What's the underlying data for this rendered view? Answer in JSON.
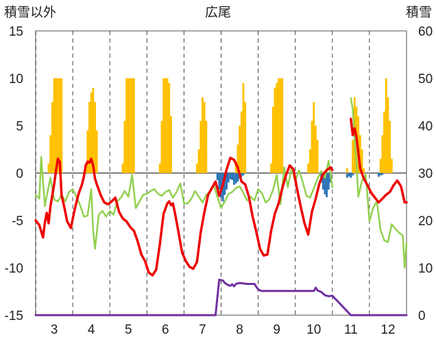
{
  "chart_data": {
    "type": "bar+line",
    "title": "広尾",
    "left_axis_label": "積雪以外",
    "right_axis_label": "積雪",
    "left_ylim": [
      -15,
      15
    ],
    "left_yticks": [
      15,
      10,
      5,
      0,
      -5,
      -10,
      -15
    ],
    "right_ylim": [
      0,
      60
    ],
    "right_yticks": [
      60,
      50,
      40,
      30,
      20,
      10,
      0
    ],
    "xlim": [
      2.5,
      12.5
    ],
    "x_ticks": [
      3,
      4,
      5,
      6,
      7,
      8,
      9,
      10,
      11,
      12
    ],
    "x_tick_labels": [
      "3",
      "4",
      "5",
      "6",
      "7",
      "8",
      "9",
      "10",
      "11",
      "12"
    ],
    "grid": "dashed vertical at month boundaries",
    "colors": {
      "red_series": "#ee0000",
      "green_series": "#92d050",
      "purple_series": "#7030a0",
      "orange_bars": "#ffc000",
      "blue_bars": "#2e75b6",
      "zero_line": "#7f7f7f",
      "frame": "#8c8c8c",
      "grid": "#404040"
    },
    "series": [
      {
        "name": "red line (left axis)",
        "x": [
          2.5,
          2.6,
          2.7,
          2.75,
          2.8,
          2.85,
          2.9,
          3.0,
          3.05,
          3.1,
          3.15,
          3.2,
          3.25,
          3.35,
          3.45,
          3.55,
          3.65,
          3.75,
          3.8,
          3.85,
          3.9,
          3.95,
          4.0,
          4.05,
          4.1,
          4.15,
          4.25,
          4.35,
          4.45,
          4.55,
          4.65,
          4.75,
          4.85,
          4.95,
          5.05,
          5.15,
          5.25,
          5.35,
          5.45,
          5.55,
          5.65,
          5.75,
          5.85,
          5.95,
          6.05,
          6.1,
          6.15,
          6.2,
          6.25,
          6.35,
          6.45,
          6.55,
          6.65,
          6.75,
          6.85,
          6.95,
          7.05,
          7.15,
          7.25,
          7.35,
          7.45,
          7.55,
          7.65,
          7.75,
          7.85,
          7.95,
          8.05,
          8.15,
          8.25,
          8.35,
          8.45,
          8.55,
          8.65,
          8.75,
          8.85,
          8.95,
          9.05,
          9.15,
          9.25,
          9.35,
          9.45,
          9.55,
          9.65,
          9.75,
          9.85,
          9.95,
          10.05,
          10.15,
          10.25,
          10.35,
          10.45,
          10.5,
          11.0,
          11.05,
          11.1,
          11.15,
          11.25,
          11.35,
          11.45,
          11.55,
          11.65,
          11.75,
          11.85,
          11.95,
          12.05,
          12.15,
          12.25,
          12.35,
          12.45,
          12.5
        ],
        "y": [
          -5,
          -5.5,
          -6.8,
          -5.2,
          -4.2,
          -5.3,
          -3.5,
          -1.2,
          0.3,
          1.5,
          1.2,
          -2.4,
          -3.2,
          -5.1,
          -5.8,
          -3.9,
          -2.3,
          -1.2,
          -0.4,
          0.8,
          1.2,
          1.1,
          1.5,
          0.8,
          -0.6,
          -1.2,
          -2.3,
          -3.1,
          -3.3,
          -3.0,
          -2.6,
          -4.1,
          -4.8,
          -5.1,
          -5.7,
          -6.1,
          -7.2,
          -8.6,
          -9.3,
          -10.5,
          -10.8,
          -10.2,
          -7.5,
          -4.3,
          -3.2,
          -3.0,
          -3.4,
          -3.2,
          -4.1,
          -6.2,
          -8.4,
          -9.3,
          -9.9,
          -10.1,
          -9.4,
          -6.3,
          -4.1,
          -2.3,
          -1.6,
          -0.9,
          -2.4,
          -1.2,
          0.4,
          1.6,
          1.4,
          0.6,
          -0.9,
          -1.2,
          -2.5,
          -4.6,
          -6.2,
          -8.0,
          -8.7,
          -8.6,
          -6.1,
          -4.3,
          -3.2,
          -1.6,
          -0.2,
          0.8,
          0.4,
          -1.7,
          -3.6,
          -5.3,
          -6.5,
          -4.1,
          -2.7,
          -1.1,
          -0.1,
          0.3,
          0.6,
          0.3,
          5.7,
          4.0,
          4.7,
          3.8,
          0.5,
          -0.6,
          -1.3,
          -2.1,
          -2.6,
          -3.1,
          -2.7,
          -2.3,
          -2.0,
          -1.3,
          -0.8,
          -1.4,
          -3.1,
          -3.1
        ]
      },
      {
        "name": "green line (left axis)",
        "x": [
          2.5,
          2.6,
          2.65,
          2.7,
          2.75,
          2.8,
          2.9,
          3.0,
          3.1,
          3.2,
          3.3,
          3.4,
          3.5,
          3.6,
          3.7,
          3.8,
          3.9,
          4.0,
          4.05,
          4.1,
          4.2,
          4.3,
          4.4,
          4.5,
          4.6,
          4.7,
          4.8,
          4.9,
          5.0,
          5.1,
          5.2,
          5.3,
          5.4,
          5.5,
          5.6,
          5.7,
          5.8,
          5.9,
          6.0,
          6.1,
          6.2,
          6.3,
          6.4,
          6.5,
          6.6,
          6.7,
          6.8,
          6.9,
          7.0,
          7.1,
          7.2,
          7.3,
          7.4,
          7.5,
          7.6,
          7.7,
          7.8,
          7.9,
          8.0,
          8.1,
          8.2,
          8.3,
          8.4,
          8.5,
          8.6,
          8.7,
          8.8,
          8.9,
          9.0,
          9.1,
          9.2,
          9.3,
          9.4,
          9.5,
          9.6,
          9.7,
          9.8,
          9.9,
          10.0,
          10.1,
          10.2,
          10.3,
          10.4,
          10.5,
          11.0,
          11.05,
          11.1,
          11.15,
          11.2,
          11.3,
          11.4,
          11.5,
          11.6,
          11.7,
          11.8,
          11.9,
          12.0,
          12.1,
          12.2,
          12.3,
          12.4,
          12.45,
          12.5
        ],
        "y": [
          -2.3,
          -2.7,
          1.7,
          -1.0,
          -3.5,
          -2.4,
          -0.5,
          -2.8,
          -3.0,
          -2.3,
          -3.0,
          -2.0,
          -1.7,
          -2.5,
          -3.4,
          -4.6,
          -4.5,
          -1.7,
          -6.1,
          -8.0,
          -4.4,
          -4.0,
          -4.6,
          -4.0,
          -4.4,
          -3.0,
          -2.6,
          -1.9,
          -2.5,
          -0.2,
          -3.7,
          -3.0,
          -2.3,
          -2.2,
          -1.9,
          -1.7,
          -2.2,
          -2.4,
          -2.0,
          -1.8,
          -2.6,
          -2.0,
          -1.1,
          -3.2,
          -3.2,
          -2.7,
          -1.9,
          -2.5,
          -3.1,
          -2.3,
          -2.0,
          -1.2,
          -2.5,
          -3.7,
          -3.0,
          -2.2,
          -2.0,
          -1.6,
          -1.4,
          -2.1,
          -2.9,
          -2.5,
          -2.9,
          -1.7,
          -2.1,
          -3.1,
          -2.8,
          -1.8,
          -0.2,
          -3.3,
          0.6,
          -1.5,
          0.6,
          -0.9,
          0.3,
          -0.9,
          -2.4,
          -2.6,
          -1.6,
          -0.6,
          0.2,
          -0.5,
          1.3,
          -1.5,
          7.9,
          6.7,
          3.7,
          1.1,
          -2.5,
          -0.8,
          -0.2,
          -5.1,
          -3.7,
          -3.0,
          -6.0,
          -7.1,
          -7.3,
          -5.4,
          -5.9,
          -6.3,
          -6.6,
          -10.0,
          -7.4
        ]
      },
      {
        "name": "purple line (right axis)",
        "x": [
          2.5,
          7.35,
          7.45,
          7.55,
          7.6,
          7.7,
          7.75,
          7.8,
          7.85,
          7.9,
          7.95,
          8.0,
          8.1,
          8.2,
          8.3,
          8.4,
          8.5,
          8.6,
          8.7,
          8.8,
          8.9,
          9.0,
          9.1,
          9.2,
          9.3,
          9.4,
          9.5,
          9.6,
          9.7,
          9.8,
          9.9,
          9.95,
          10.0,
          10.05,
          10.1,
          10.2,
          10.3,
          10.4,
          10.5,
          11.0,
          12.5
        ],
        "y": [
          0,
          0,
          7.5,
          7.3,
          6.8,
          6.3,
          6.2,
          6.5,
          6.1,
          6.6,
          6.7,
          6.8,
          6.7,
          6.6,
          6.6,
          6.6,
          5.4,
          5.1,
          5.1,
          5.1,
          5.1,
          5.1,
          5.1,
          5.1,
          5.1,
          5.1,
          5.1,
          5.1,
          5.1,
          5.1,
          5.1,
          5.1,
          5.1,
          5.8,
          5.2,
          4.9,
          4.2,
          4.0,
          4.1,
          0,
          0
        ]
      },
      {
        "name": "orange bars (right axis)",
        "x": [
          2.85,
          2.9,
          2.95,
          3.0,
          3.05,
          3.1,
          3.15,
          3.2,
          3.85,
          3.9,
          3.95,
          4.0,
          4.05,
          4.1,
          4.15,
          4.85,
          4.9,
          4.95,
          5.0,
          5.05,
          5.1,
          5.15,
          5.85,
          5.9,
          5.95,
          6.0,
          6.05,
          6.1,
          6.15,
          6.85,
          6.9,
          6.95,
          7.0,
          7.05,
          7.1,
          7.9,
          7.95,
          8.0,
          8.05,
          8.1,
          8.15,
          8.85,
          8.9,
          8.95,
          9.0,
          9.05,
          9.1,
          9.15,
          9.85,
          9.9,
          9.95,
          10.0,
          10.05,
          10.1,
          10.9,
          11.05,
          11.1,
          11.15,
          11.2,
          11.25,
          11.3,
          11.35,
          11.8,
          11.85,
          11.9,
          11.95,
          12.0,
          12.05,
          12.1
        ],
        "values": [
          32,
          38,
          45,
          50,
          50,
          50,
          50,
          50,
          32,
          39,
          45,
          47,
          48,
          45,
          39,
          32,
          41,
          50,
          50,
          50,
          50,
          50,
          32,
          41,
          50,
          50,
          50,
          49,
          42,
          32,
          35,
          41,
          46,
          45,
          41,
          32,
          36,
          40,
          43,
          49,
          45,
          32,
          44,
          48,
          49,
          50,
          50,
          50,
          32,
          35,
          41,
          45,
          40,
          37,
          31,
          37,
          46,
          44,
          42,
          38,
          35,
          31,
          33,
          38,
          43,
          50,
          46,
          41,
          33
        ]
      },
      {
        "name": "blue bars (right axis, hanging from zero)",
        "x": [
          7.4,
          7.45,
          7.5,
          7.55,
          7.6,
          7.65,
          7.7,
          7.75,
          7.8,
          7.85,
          7.9,
          7.95,
          8.0,
          8.05,
          8.1,
          10.2,
          10.25,
          10.3,
          10.35,
          10.4,
          10.45,
          10.9,
          10.95,
          11.0,
          11.05,
          11.75,
          11.8,
          11.85
        ],
        "values": [
          28.5,
          26.5,
          24.8,
          24.0,
          25.4,
          26.5,
          28.0,
          28.7,
          28.5,
          27.5,
          27.8,
          28.2,
          28.8,
          29.2,
          29.5,
          28.0,
          26.5,
          25.5,
          24.9,
          26.5,
          28.0,
          29.0,
          29.3,
          29.0,
          29.5,
          29.2,
          29.5,
          29.6
        ]
      }
    ]
  }
}
